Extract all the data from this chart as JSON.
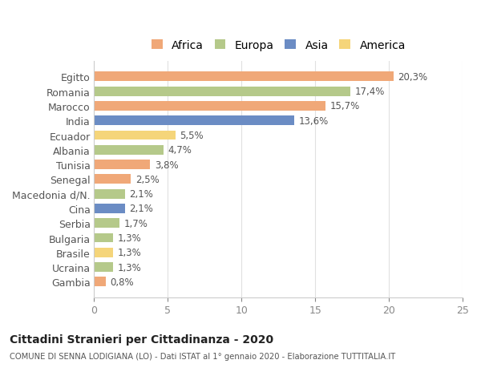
{
  "countries": [
    "Egitto",
    "Romania",
    "Marocco",
    "India",
    "Ecuador",
    "Albania",
    "Tunisia",
    "Senegal",
    "Macedonia d/N.",
    "Cina",
    "Serbia",
    "Bulgaria",
    "Brasile",
    "Ucraina",
    "Gambia"
  ],
  "values": [
    20.3,
    17.4,
    15.7,
    13.6,
    5.5,
    4.7,
    3.8,
    2.5,
    2.1,
    2.1,
    1.7,
    1.3,
    1.3,
    1.3,
    0.8
  ],
  "labels": [
    "20,3%",
    "17,4%",
    "15,7%",
    "13,6%",
    "5,5%",
    "4,7%",
    "3,8%",
    "2,5%",
    "2,1%",
    "2,1%",
    "1,7%",
    "1,3%",
    "1,3%",
    "1,3%",
    "0,8%"
  ],
  "continents": [
    "Africa",
    "Europa",
    "Africa",
    "Asia",
    "America",
    "Europa",
    "Africa",
    "Africa",
    "Europa",
    "Asia",
    "Europa",
    "Europa",
    "America",
    "Europa",
    "Africa"
  ],
  "colors": {
    "Africa": "#F0A878",
    "Europa": "#B5C98A",
    "Asia": "#6B8CC4",
    "America": "#F5D57A"
  },
  "legend_order": [
    "Africa",
    "Europa",
    "Asia",
    "America"
  ],
  "xlim": [
    0,
    25
  ],
  "xticks": [
    0,
    5,
    10,
    15,
    20,
    25
  ],
  "title": "Cittadini Stranieri per Cittadinanza - 2020",
  "subtitle": "COMUNE DI SENNA LODIGIANA (LO) - Dati ISTAT al 1° gennaio 2020 - Elaborazione TUTTITALIA.IT",
  "bg_color": "#ffffff",
  "grid_color": "#e0e0e0",
  "bar_height": 0.65
}
